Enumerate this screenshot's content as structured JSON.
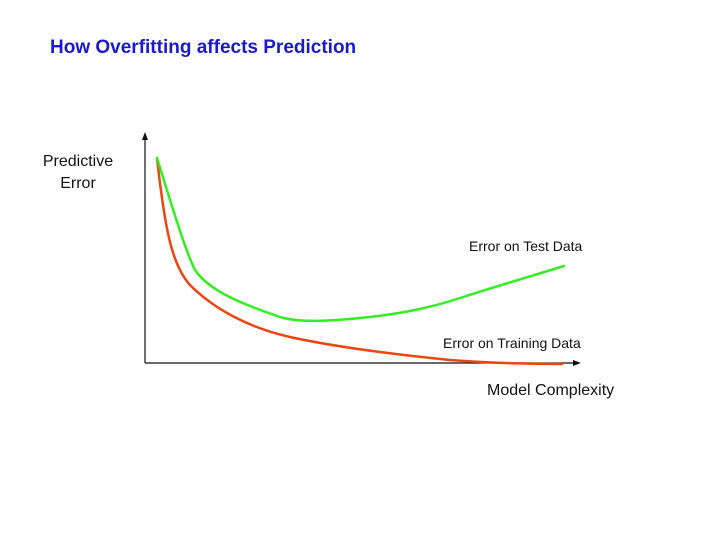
{
  "title": "How Overfitting affects Prediction",
  "chart_data": {
    "type": "line",
    "ylabel": [
      "Predictive",
      "Error"
    ],
    "xlabel": "Model Complexity",
    "grid": false,
    "axes": {
      "ticks": false,
      "arrowheads": true
    },
    "series": [
      {
        "name": "Error on Test Data",
        "color": "#33ee22",
        "shape": "decreases sharply, reaches a minimum at moderate complexity, then rises",
        "x": [
          0,
          0.1,
          0.35,
          0.7,
          1.0
        ],
        "y": [
          1.0,
          0.43,
          0.2,
          0.28,
          0.48
        ]
      },
      {
        "name": "Error on Training Data",
        "color": "#ee4411",
        "shape": "decreases monotonically toward zero",
        "x": [
          0,
          0.1,
          0.35,
          0.7,
          1.0
        ],
        "y": [
          1.0,
          0.35,
          0.13,
          0.02,
          0.0
        ]
      }
    ]
  }
}
